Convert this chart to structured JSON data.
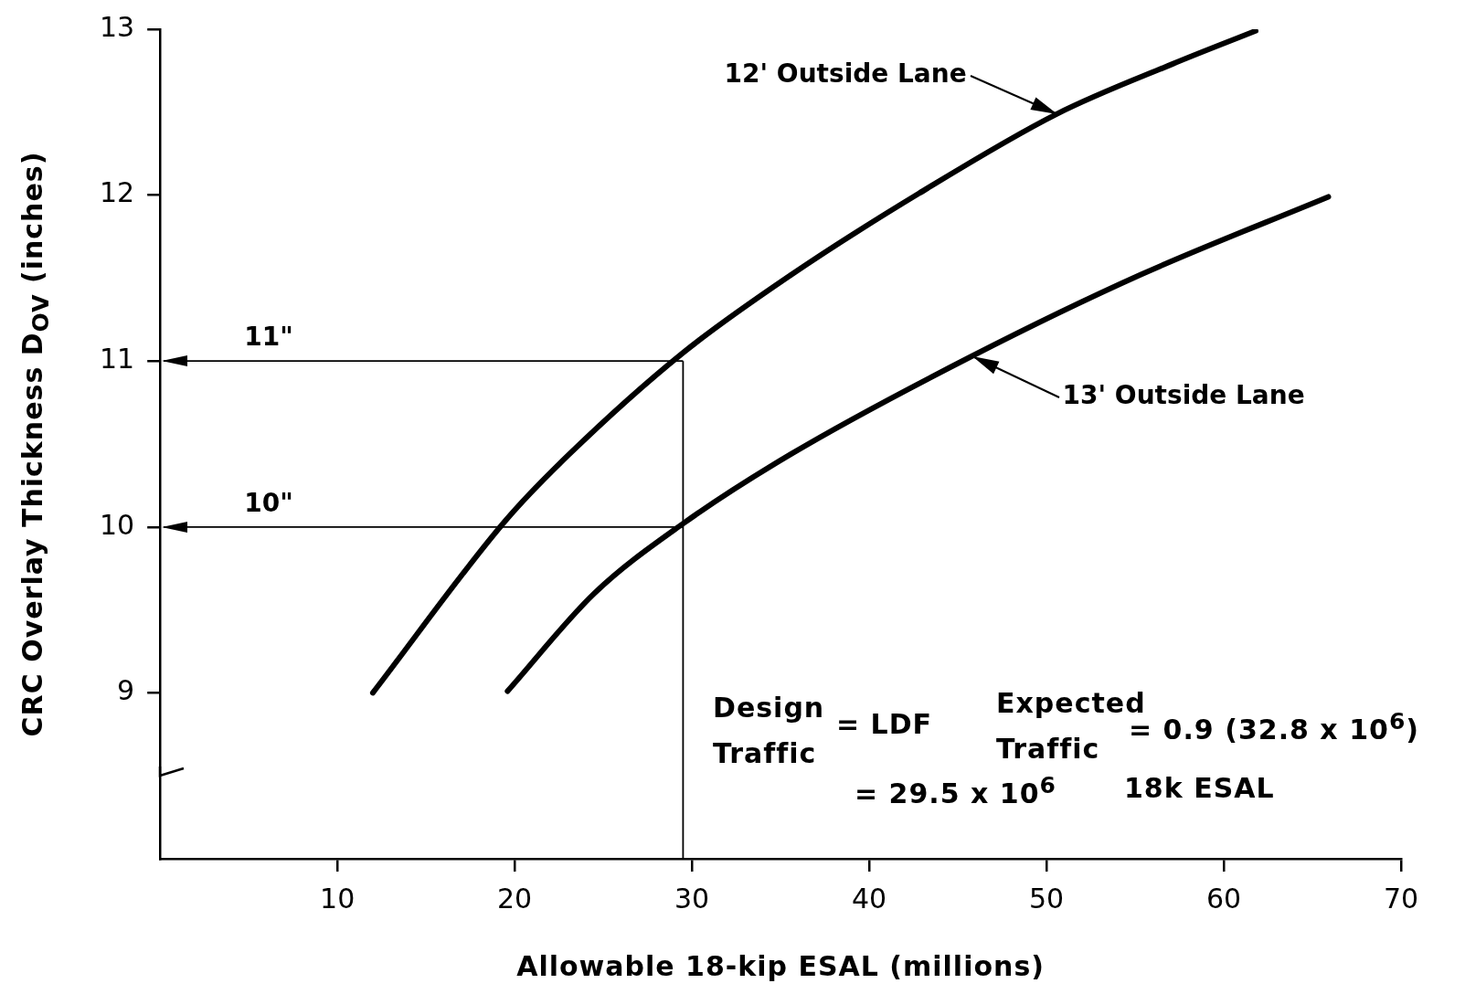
{
  "chart_data": {
    "type": "line",
    "xlabel": "Allowable 18-kip ESAL (millions)",
    "ylabel": "CRC Overlay Thickness D$_{OV}$ (inches)",
    "xlim": [
      0,
      70
    ],
    "xticks": [
      10,
      20,
      30,
      40,
      50,
      60,
      70
    ],
    "ylim": [
      8,
      13
    ],
    "yticks": [
      9,
      10,
      11,
      12,
      13
    ],
    "grid": false,
    "legend": false,
    "marker": "none",
    "line_style": "solid",
    "series": [
      {
        "name": "12' Outside Lane",
        "color": "#000000",
        "x": [
          12,
          19.5,
          23,
          29.5,
          35.6,
          42.8,
          50.6,
          57.1,
          61.8
        ],
        "values": [
          9,
          10.04,
          10.43,
          11.05,
          11.52,
          12.01,
          12.49,
          12.79,
          12.99
        ]
      },
      {
        "name": "13' Outside Lane",
        "color": "#000000",
        "x": [
          19.6,
          24.5,
          29.5,
          35.6,
          45.8,
          55.3,
          65.9
        ],
        "values": [
          9.01,
          9.6,
          10.02,
          10.44,
          11.03,
          11.52,
          11.99
        ]
      }
    ],
    "ref_lines": [
      {
        "axis": "y",
        "value": 11,
        "label": "11\""
      },
      {
        "axis": "y",
        "value": 10,
        "label": "10\""
      },
      {
        "axis": "x",
        "value": 29.5
      }
    ],
    "annotations": [
      "Design Traffic",
      "= LDF",
      "Expected Traffic",
      "= 0.9 (32.8 x 10$^{6}$)",
      "= 29.5 x 10$^{6}$",
      "18k ESAL"
    ]
  }
}
